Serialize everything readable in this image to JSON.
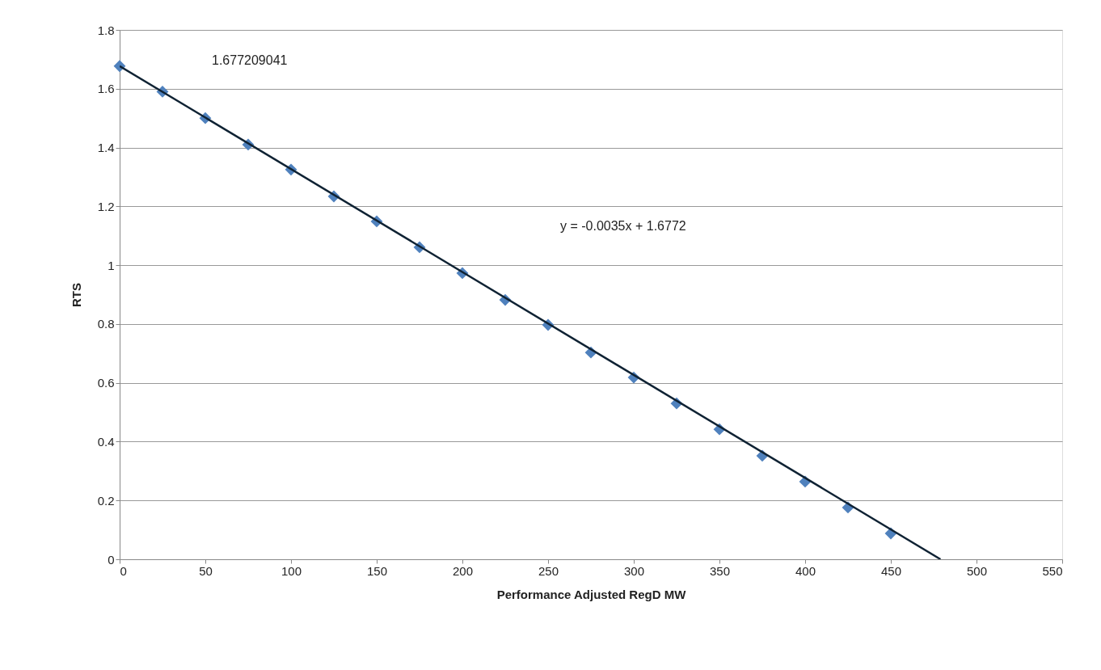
{
  "chart_data": {
    "type": "scatter",
    "xlabel": "Performance Adjusted RegD MW",
    "ylabel": "RTS",
    "annotations": [
      "1.677209041",
      "y = -0.0035x + 1.6772"
    ],
    "series": [
      {
        "marker": "diamond",
        "color": "#4f81bd",
        "x": [
          0,
          25,
          50,
          75,
          100,
          125,
          150,
          175,
          200,
          225,
          250,
          275,
          300,
          325,
          350,
          375,
          400,
          425,
          450
        ],
        "values": [
          1.677,
          1.59,
          1.5,
          1.41,
          1.325,
          1.234,
          1.149,
          1.061,
          0.973,
          0.882,
          0.797,
          0.703,
          0.618,
          0.53,
          0.442,
          0.352,
          0.264,
          0.176,
          0.088
        ]
      },
      {
        "type": "line",
        "marker": "none",
        "color": "#0f2233",
        "x": [
          0,
          479
        ],
        "values": [
          1.677,
          0
        ]
      }
    ],
    "xlim": [
      0,
      550
    ],
    "xticks": [
      0,
      50,
      100,
      150,
      200,
      250,
      300,
      350,
      400,
      450,
      500,
      550
    ],
    "ylim": [
      0,
      1.8
    ],
    "yticks": [
      0,
      0.2,
      0.4,
      0.6,
      0.8,
      1,
      1.2,
      1.4,
      1.6,
      1.8
    ],
    "grid": "y",
    "line_style": "solid"
  }
}
